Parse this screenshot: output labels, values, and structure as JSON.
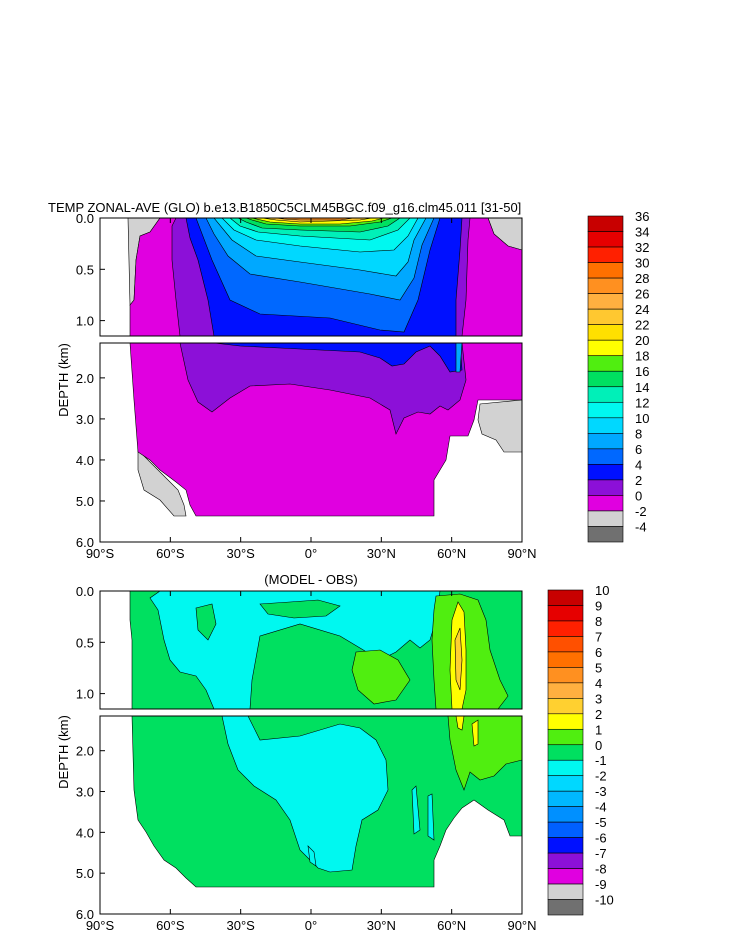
{
  "chart_data": [
    {
      "type": "heatmap",
      "title": "TEMP ZONAL-AVE (GLO) b.e13.B1850C5CLM45BGC.f09_g16.clm45.011 [31-50]",
      "ylabel": "DEPTH (km)",
      "xlabel": "",
      "x_ticks": [
        "90°S",
        "60°S",
        "30°S",
        "0°",
        "30°N",
        "60°N",
        "90°N"
      ],
      "xlim": [
        -90,
        90
      ],
      "y_ticks_upper": [
        "0.0",
        "0.5",
        "1.0"
      ],
      "y_ticks_lower": [
        "2.0",
        "3.0",
        "4.0",
        "5.0",
        "6.0"
      ],
      "ylim_upper": [
        0,
        1.15
      ],
      "ylim_lower": [
        1.15,
        6.0
      ],
      "colorbar": {
        "labels": [
          "36",
          "34",
          "32",
          "30",
          "28",
          "26",
          "24",
          "22",
          "20",
          "18",
          "16",
          "14",
          "12",
          "10",
          "8",
          "6",
          "4",
          "2",
          "0",
          "-2",
          "-4"
        ],
        "colors": [
          "#c80000",
          "#e60000",
          "#ff2000",
          "#ff7000",
          "#ff9020",
          "#ffb040",
          "#ffc830",
          "#ffe000",
          "#ffff00",
          "#50ee10",
          "#00e060",
          "#00f0b8",
          "#00f8f0",
          "#00d8ff",
          "#00a8ff",
          "#0068ff",
          "#0010ff",
          "#8c10d8",
          "#e000e0",
          "#d2d2d2",
          "#707070"
        ]
      },
      "interior": {
        "surface_warm_peak_C": 30,
        "upper_ocean_C": [
          4,
          18
        ],
        "intermediate_C": 3,
        "deep_C": 1,
        "polar_shelf_C": -1
      }
    },
    {
      "type": "heatmap",
      "title": "(MODEL - OBS)",
      "ylabel": "DEPTH (km)",
      "xlabel": "",
      "x_ticks": [
        "90°S",
        "60°S",
        "30°S",
        "0°",
        "30°N",
        "60°N",
        "90°N"
      ],
      "xlim": [
        -90,
        90
      ],
      "y_ticks_upper": [
        "0.0",
        "0.5",
        "1.0"
      ],
      "y_ticks_lower": [
        "2.0",
        "3.0",
        "4.0",
        "5.0",
        "6.0"
      ],
      "ylim_upper": [
        0,
        1.15
      ],
      "ylim_lower": [
        1.15,
        6.0
      ],
      "colorbar": {
        "labels": [
          "10",
          "9",
          "8",
          "7",
          "6",
          "5",
          "4",
          "3",
          "2",
          "1",
          "0",
          "-1",
          "-2",
          "-3",
          "-4",
          "-5",
          "-6",
          "-7",
          "-8",
          "-9",
          "-10"
        ],
        "colors": [
          "#c80000",
          "#e60000",
          "#ff2000",
          "#ff5000",
          "#ff7000",
          "#ff9020",
          "#ffb040",
          "#ffd030",
          "#ffff00",
          "#50ee10",
          "#00e060",
          "#00f8f0",
          "#00d8ff",
          "#00b8ff",
          "#0090ff",
          "#0060ff",
          "#0010ff",
          "#8c10d8",
          "#e000e0",
          "#d2d2d2",
          "#707070"
        ]
      },
      "interior": {
        "dominant_anomaly_C": 0.5,
        "cool_regions_C": -0.5,
        "warm_regions_C": 1.5,
        "arctic_peak_C": 3
      }
    }
  ]
}
